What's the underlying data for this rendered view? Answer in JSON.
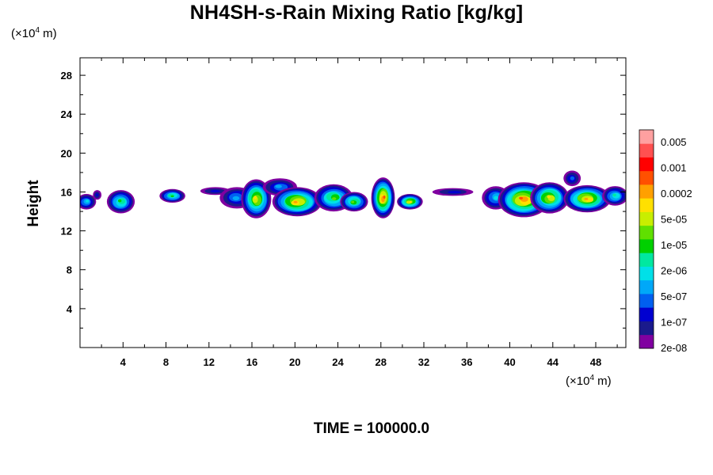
{
  "chart_data": {
    "type": "heatmap",
    "title": "NH4SH-s-Rain Mixing Ratio [kg/kg]",
    "ylabel": "Height",
    "x_unit_label": "(×10",
    "x_unit_exp": "4",
    "x_unit_tail": " m)",
    "y_unit_label": "(×10",
    "y_unit_exp": "4",
    "y_unit_tail": " m)",
    "xlim": [
      0,
      50.8
    ],
    "ylim": [
      0,
      29.8
    ],
    "x_ticks": [
      4,
      8,
      12,
      16,
      20,
      24,
      28,
      32,
      36,
      40,
      44,
      48
    ],
    "y_ticks": [
      4,
      8,
      12,
      16,
      20,
      24,
      28
    ],
    "colorbar": {
      "labels": [
        "0.005",
        "0.001",
        "0.0002",
        "5e-05",
        "1e-05",
        "2e-06",
        "5e-07",
        "1e-07",
        "2e-08"
      ],
      "colors": [
        "#8000a0",
        "#1a1a8c",
        "#0000d0",
        "#0060f0",
        "#00a8f8",
        "#00e0e8",
        "#00e8a0",
        "#00d000",
        "#60e000",
        "#c8ee00",
        "#ffe000",
        "#ffa000",
        "#ff5000",
        "#ff0000",
        "#ff5050",
        "#ffa0a0"
      ]
    },
    "clusters": [
      {
        "x": 0.6,
        "y": 15.0,
        "rx": 0.9,
        "ry": 0.8,
        "level": 5
      },
      {
        "x": 1.6,
        "y": 15.7,
        "rx": 0.4,
        "ry": 0.5,
        "level": 2
      },
      {
        "x": 3.8,
        "y": 15.0,
        "rx": 1.3,
        "ry": 1.2,
        "level": 7
      },
      {
        "x": 8.6,
        "y": 15.6,
        "rx": 1.2,
        "ry": 0.7,
        "level": 7
      },
      {
        "x": 12.6,
        "y": 16.1,
        "rx": 1.4,
        "ry": 0.4,
        "level": 2
      },
      {
        "x": 14.6,
        "y": 15.4,
        "rx": 1.6,
        "ry": 1.1,
        "level": 4
      },
      {
        "x": 16.4,
        "y": 15.3,
        "rx": 1.4,
        "ry": 2.0,
        "level": 10
      },
      {
        "x": 18.6,
        "y": 16.5,
        "rx": 1.6,
        "ry": 0.9,
        "level": 4
      },
      {
        "x": 20.2,
        "y": 15.0,
        "rx": 2.3,
        "ry": 1.5,
        "level": 11
      },
      {
        "x": 23.6,
        "y": 15.4,
        "rx": 1.8,
        "ry": 1.4,
        "level": 8
      },
      {
        "x": 25.5,
        "y": 15.0,
        "rx": 1.3,
        "ry": 1.0,
        "level": 8
      },
      {
        "x": 28.2,
        "y": 15.4,
        "rx": 1.1,
        "ry": 2.1,
        "level": 12
      },
      {
        "x": 30.7,
        "y": 15.0,
        "rx": 1.2,
        "ry": 0.8,
        "level": 10
      },
      {
        "x": 34.7,
        "y": 16.0,
        "rx": 1.9,
        "ry": 0.4,
        "level": 2
      },
      {
        "x": 38.7,
        "y": 15.4,
        "rx": 1.3,
        "ry": 1.2,
        "level": 5
      },
      {
        "x": 41.3,
        "y": 15.2,
        "rx": 2.4,
        "ry": 1.8,
        "level": 12
      },
      {
        "x": 43.7,
        "y": 15.4,
        "rx": 1.8,
        "ry": 1.6,
        "level": 10
      },
      {
        "x": 45.8,
        "y": 17.4,
        "rx": 0.8,
        "ry": 0.8,
        "level": 3
      },
      {
        "x": 47.2,
        "y": 15.3,
        "rx": 2.2,
        "ry": 1.4,
        "level": 11
      },
      {
        "x": 49.8,
        "y": 15.6,
        "rx": 1.2,
        "ry": 1.0,
        "level": 6
      }
    ]
  },
  "time_label": "TIME = 100000.0"
}
